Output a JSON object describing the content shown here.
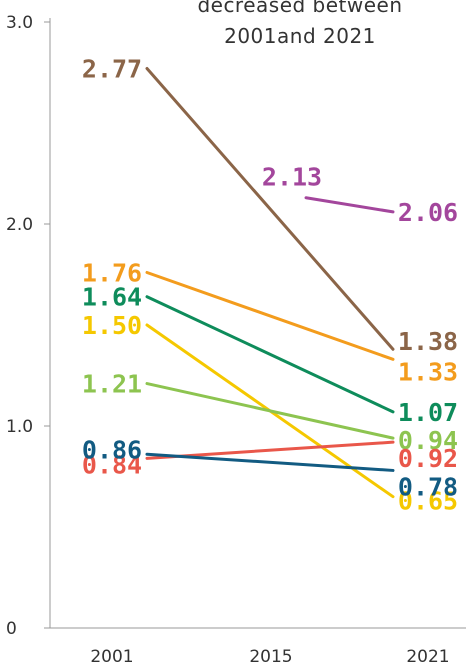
{
  "chart_data": {
    "type": "line",
    "title_lines": [
      "decreased between",
      "2001and 2021"
    ],
    "x": [
      "2001",
      "2015",
      "2021"
    ],
    "ylim": [
      0,
      3.0
    ],
    "yticks": [
      "0",
      "1.0",
      "2.0",
      "3.0"
    ],
    "grid": false,
    "series": [
      {
        "color": "#8B6548",
        "points": [
          {
            "x": "2001",
            "y": 2.77,
            "label": "2.77"
          },
          {
            "x": "2021",
            "y": 1.38,
            "label": "1.38"
          }
        ]
      },
      {
        "color": "#A3469C",
        "points": [
          {
            "x": "2015",
            "y": 2.13,
            "label": "2.13"
          },
          {
            "x": "2021",
            "y": 2.06,
            "label": "2.06"
          }
        ]
      },
      {
        "color": "#F39C1D",
        "points": [
          {
            "x": "2001",
            "y": 1.76,
            "label": "1.76"
          },
          {
            "x": "2021",
            "y": 1.33,
            "label": "1.33"
          }
        ]
      },
      {
        "color": "#0E8C5B",
        "points": [
          {
            "x": "2001",
            "y": 1.64,
            "label": "1.64"
          },
          {
            "x": "2021",
            "y": 1.07,
            "label": "1.07"
          }
        ]
      },
      {
        "color": "#F5C800",
        "points": [
          {
            "x": "2001",
            "y": 1.5,
            "label": "1.50"
          },
          {
            "x": "2021",
            "y": 0.65,
            "label": "0.65"
          }
        ]
      },
      {
        "color": "#8DC450",
        "points": [
          {
            "x": "2001",
            "y": 1.21,
            "label": "1.21"
          },
          {
            "x": "2021",
            "y": 0.94,
            "label": "0.94"
          }
        ]
      },
      {
        "color": "#E9574A",
        "points": [
          {
            "x": "2001",
            "y": 0.84,
            "label": "0.84"
          },
          {
            "x": "2021",
            "y": 0.92,
            "label": "0.92"
          }
        ]
      },
      {
        "color": "#125B82",
        "points": [
          {
            "x": "2001",
            "y": 0.86,
            "label": "0.86"
          },
          {
            "x": "2021",
            "y": 0.78,
            "label": "0.78"
          }
        ]
      }
    ]
  }
}
